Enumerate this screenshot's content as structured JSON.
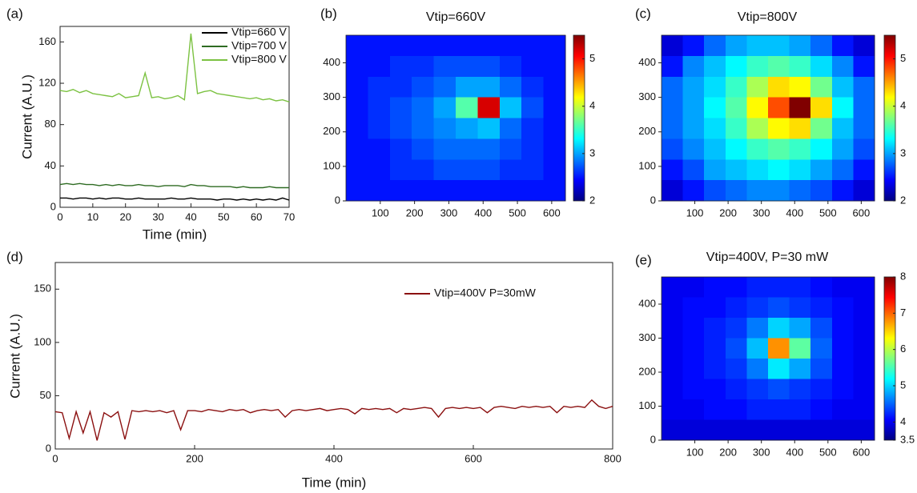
{
  "chart_data": [
    {
      "type": "line",
      "label": "(a)",
      "xlabel": "Time (min)",
      "ylabel": "Current (A.U.)",
      "x": [
        0,
        2,
        4,
        6,
        8,
        10,
        12,
        14,
        16,
        18,
        20,
        22,
        24,
        26,
        28,
        30,
        32,
        34,
        36,
        38,
        40,
        42,
        44,
        46,
        48,
        50,
        52,
        54,
        56,
        58,
        60,
        62,
        64,
        66,
        68,
        70
      ],
      "xlim": [
        0,
        70
      ],
      "ylim": [
        0,
        175
      ],
      "xticks": [
        0,
        10,
        20,
        30,
        40,
        50,
        60,
        70
      ],
      "yticks": [
        0,
        40,
        80,
        120,
        160
      ],
      "legend": "upper right",
      "series": [
        {
          "name": "Vtip=660 V",
          "color": "#000000",
          "values": [
            9,
            9,
            8,
            9,
            9,
            8,
            9,
            8,
            9,
            9,
            8,
            8,
            9,
            8,
            8,
            8,
            8,
            9,
            8,
            8,
            9,
            8,
            8,
            8,
            7,
            8,
            8,
            7,
            8,
            7,
            8,
            7,
            8,
            7,
            9,
            7
          ]
        },
        {
          "name": "Vtip=700 V",
          "color": "#2e6b22",
          "values": [
            22,
            23,
            22,
            23,
            22,
            22,
            21,
            22,
            21,
            22,
            21,
            21,
            22,
            21,
            21,
            20,
            21,
            21,
            21,
            20,
            22,
            21,
            21,
            20,
            20,
            20,
            20,
            19,
            20,
            19,
            19,
            19,
            20,
            19,
            19,
            19
          ]
        },
        {
          "name": "Vtip=800 V",
          "color": "#7cc242",
          "values": [
            113,
            112,
            114,
            111,
            113,
            110,
            109,
            108,
            107,
            110,
            106,
            107,
            108,
            130,
            106,
            107,
            105,
            106,
            108,
            104,
            168,
            110,
            112,
            113,
            110,
            109,
            108,
            107,
            106,
            105,
            106,
            104,
            105,
            103,
            104,
            102
          ]
        }
      ]
    },
    {
      "type": "heatmap",
      "label": "(b)",
      "title": "Vtip=660V",
      "colormap": "jet",
      "xlim": [
        0,
        640
      ],
      "ylim": [
        0,
        480
      ],
      "xticks": [
        100,
        200,
        300,
        400,
        500,
        600
      ],
      "yticks": [
        0,
        100,
        200,
        300,
        400
      ],
      "clim": [
        2,
        5.5
      ],
      "cticks": [
        2,
        3,
        4,
        5
      ],
      "z": [
        [
          2.5,
          2.5,
          2.5,
          2.5,
          2.5,
          2.5,
          2.5,
          2.5,
          2.5,
          2.5
        ],
        [
          2.5,
          2.5,
          2.6,
          2.6,
          2.7,
          2.7,
          2.7,
          2.6,
          2.5,
          2.5
        ],
        [
          2.5,
          2.6,
          2.6,
          2.7,
          2.8,
          3.0,
          3.0,
          2.8,
          2.6,
          2.5
        ],
        [
          2.5,
          2.6,
          2.7,
          2.8,
          3.0,
          3.6,
          5.2,
          3.1,
          2.7,
          2.5
        ],
        [
          2.5,
          2.6,
          2.7,
          2.8,
          2.9,
          3.0,
          3.1,
          2.8,
          2.6,
          2.5
        ],
        [
          2.5,
          2.5,
          2.6,
          2.7,
          2.8,
          2.8,
          2.8,
          2.7,
          2.6,
          2.5
        ],
        [
          2.5,
          2.5,
          2.6,
          2.6,
          2.7,
          2.7,
          2.7,
          2.6,
          2.6,
          2.5
        ],
        [
          2.5,
          2.5,
          2.5,
          2.5,
          2.5,
          2.5,
          2.5,
          2.5,
          2.5,
          2.5
        ]
      ]
    },
    {
      "type": "heatmap",
      "label": "(c)",
      "title": "Vtip=800V",
      "colormap": "jet",
      "xlim": [
        0,
        640
      ],
      "ylim": [
        0,
        480
      ],
      "xticks": [
        100,
        200,
        300,
        400,
        500,
        600
      ],
      "yticks": [
        0,
        100,
        200,
        300,
        400
      ],
      "clim": [
        2,
        5.5
      ],
      "cticks": [
        2,
        3,
        4,
        5
      ],
      "z": [
        [
          2.3,
          2.5,
          2.8,
          3.0,
          3.1,
          3.1,
          3.0,
          2.8,
          2.5,
          2.3
        ],
        [
          2.5,
          2.9,
          3.1,
          3.3,
          3.5,
          3.6,
          3.5,
          3.2,
          2.9,
          2.5
        ],
        [
          2.8,
          3.0,
          3.2,
          3.5,
          3.9,
          4.3,
          4.2,
          3.7,
          3.1,
          2.8
        ],
        [
          2.8,
          3.0,
          3.3,
          3.6,
          4.2,
          4.8,
          5.5,
          4.3,
          3.3,
          2.8
        ],
        [
          2.8,
          3.0,
          3.2,
          3.5,
          3.9,
          4.2,
          4.3,
          3.7,
          3.1,
          2.8
        ],
        [
          2.7,
          2.9,
          3.1,
          3.3,
          3.5,
          3.6,
          3.5,
          3.3,
          3.0,
          2.7
        ],
        [
          2.5,
          2.7,
          3.0,
          3.1,
          3.2,
          3.3,
          3.2,
          3.0,
          2.8,
          2.5
        ],
        [
          2.3,
          2.5,
          2.7,
          2.8,
          2.9,
          2.9,
          2.8,
          2.7,
          2.5,
          2.3
        ]
      ]
    },
    {
      "type": "line",
      "label": "(d)",
      "xlabel": "Time (min)",
      "ylabel": "Current (A.U.)",
      "x": [
        0,
        10,
        20,
        30,
        40,
        50,
        60,
        70,
        80,
        90,
        100,
        110,
        120,
        130,
        140,
        150,
        160,
        170,
        180,
        190,
        200,
        210,
        220,
        230,
        240,
        250,
        260,
        270,
        280,
        290,
        300,
        310,
        320,
        330,
        340,
        350,
        360,
        370,
        380,
        390,
        400,
        410,
        420,
        430,
        440,
        450,
        460,
        470,
        480,
        490,
        500,
        510,
        520,
        530,
        540,
        550,
        560,
        570,
        580,
        590,
        600,
        610,
        620,
        630,
        640,
        650,
        660,
        670,
        680,
        690,
        700,
        710,
        720,
        730,
        740,
        750,
        760,
        770,
        780,
        790,
        800
      ],
      "xlim": [
        0,
        800
      ],
      "ylim": [
        0,
        175
      ],
      "xticks": [
        0,
        200,
        400,
        600,
        800
      ],
      "yticks": [
        0,
        50,
        100,
        150
      ],
      "legend": "upper right",
      "series": [
        {
          "name": "Vtip=400V P=30mW",
          "color": "#8b1010",
          "values": [
            35,
            34,
            10,
            35,
            15,
            35,
            8,
            34,
            30,
            35,
            9,
            36,
            35,
            36,
            35,
            36,
            34,
            36,
            18,
            36,
            36,
            35,
            37,
            36,
            35,
            37,
            36,
            37,
            34,
            36,
            37,
            36,
            37,
            30,
            36,
            37,
            36,
            37,
            38,
            36,
            37,
            38,
            37,
            33,
            38,
            37,
            38,
            37,
            38,
            34,
            38,
            37,
            38,
            39,
            38,
            30,
            38,
            39,
            38,
            39,
            38,
            39,
            34,
            39,
            40,
            39,
            38,
            40,
            39,
            40,
            39,
            40,
            34,
            40,
            39,
            40,
            39,
            46,
            40,
            38,
            40
          ]
        }
      ]
    },
    {
      "type": "heatmap",
      "label": "(e)",
      "title": "Vtip=400V, P=30 mW",
      "colormap": "jet",
      "xlim": [
        0,
        640
      ],
      "ylim": [
        0,
        480
      ],
      "xticks": [
        100,
        200,
        300,
        400,
        500,
        600
      ],
      "yticks": [
        0,
        100,
        200,
        300,
        400
      ],
      "clim": [
        3.5,
        8
      ],
      "cticks": [
        3.5,
        4,
        5,
        6,
        7,
        8
      ],
      "z": [
        [
          4.0,
          4.0,
          4.1,
          4.1,
          4.2,
          4.2,
          4.2,
          4.1,
          4.0,
          4.0
        ],
        [
          4.0,
          4.1,
          4.1,
          4.2,
          4.3,
          4.4,
          4.3,
          4.2,
          4.1,
          4.0
        ],
        [
          4.0,
          4.1,
          4.2,
          4.3,
          4.6,
          5.0,
          4.8,
          4.4,
          4.1,
          4.0
        ],
        [
          4.0,
          4.1,
          4.2,
          4.4,
          4.9,
          6.8,
          5.6,
          4.5,
          4.1,
          4.0
        ],
        [
          4.0,
          4.1,
          4.2,
          4.3,
          4.6,
          5.1,
          4.8,
          4.4,
          4.1,
          4.0
        ],
        [
          4.0,
          4.1,
          4.1,
          4.2,
          4.3,
          4.4,
          4.3,
          4.2,
          4.1,
          4.0
        ],
        [
          4.0,
          4.0,
          4.1,
          4.1,
          4.2,
          4.2,
          4.2,
          4.1,
          4.0,
          4.0
        ],
        [
          3.9,
          3.9,
          3.9,
          3.9,
          3.9,
          3.9,
          3.9,
          3.9,
          3.9,
          3.9
        ]
      ]
    }
  ]
}
